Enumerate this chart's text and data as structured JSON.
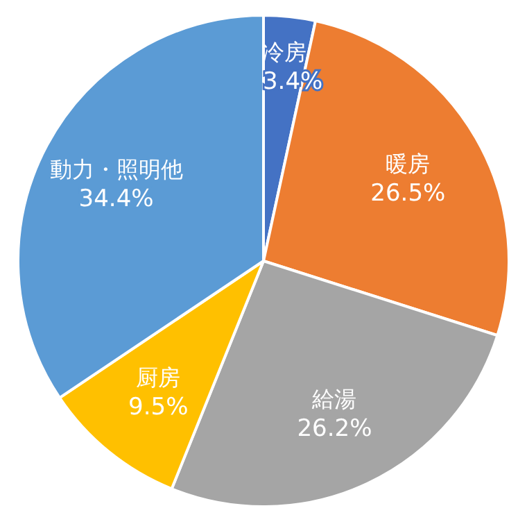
{
  "chart_data": {
    "type": "pie",
    "categories": [
      "冷房",
      "暖房",
      "給湯",
      "厨房",
      "動力・照明他"
    ],
    "values": [
      3.4,
      26.5,
      26.2,
      9.5,
      34.4
    ],
    "value_labels": [
      "3.4%",
      "26.5%",
      "26.2%",
      "9.5%",
      "34.4%"
    ],
    "colors": [
      "#4472c4",
      "#ed7d31",
      "#a5a5a5",
      "#ffc000",
      "#5b9bd5"
    ]
  }
}
